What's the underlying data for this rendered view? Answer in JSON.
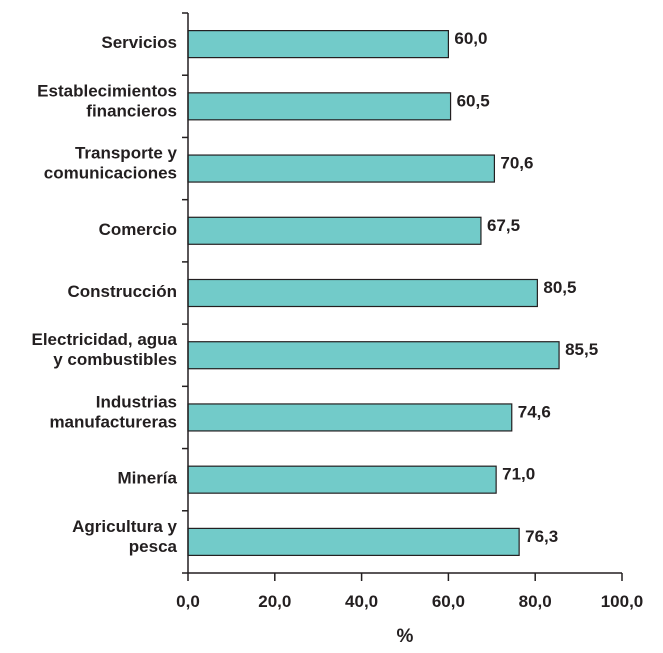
{
  "chart_data": {
    "type": "bar",
    "orientation": "horizontal",
    "categories": [
      [
        "Servicios"
      ],
      [
        "Establecimientos",
        "financieros"
      ],
      [
        "Transporte y",
        "comunicaciones"
      ],
      [
        "Comercio"
      ],
      [
        "Construcción"
      ],
      [
        "Electricidad, agua",
        "y combustibles"
      ],
      [
        "Industrias",
        "manufactureras"
      ],
      [
        "Minería"
      ],
      [
        "Agricultura y",
        "pesca"
      ]
    ],
    "values": [
      60.0,
      60.5,
      70.6,
      67.5,
      80.5,
      85.5,
      74.6,
      71.0,
      76.3
    ],
    "value_labels": [
      "60,0",
      "60,5",
      "70,6",
      "67,5",
      "80,5",
      "85,5",
      "74,6",
      "71,0",
      "76,3"
    ],
    "title": "",
    "xlabel": "%",
    "ylabel": "",
    "xlim": [
      0,
      100
    ],
    "xticks": [
      0,
      20,
      40,
      60,
      80,
      100
    ],
    "xtick_labels": [
      "0,0",
      "20,0",
      "40,0",
      "60,0",
      "80,0",
      "100,0"
    ],
    "grid": false,
    "legend": "none",
    "colors": {
      "bar_fill": "#72cbc9",
      "bar_stroke": "#231f20",
      "axis": "#231f20",
      "text": "#231f20"
    }
  }
}
